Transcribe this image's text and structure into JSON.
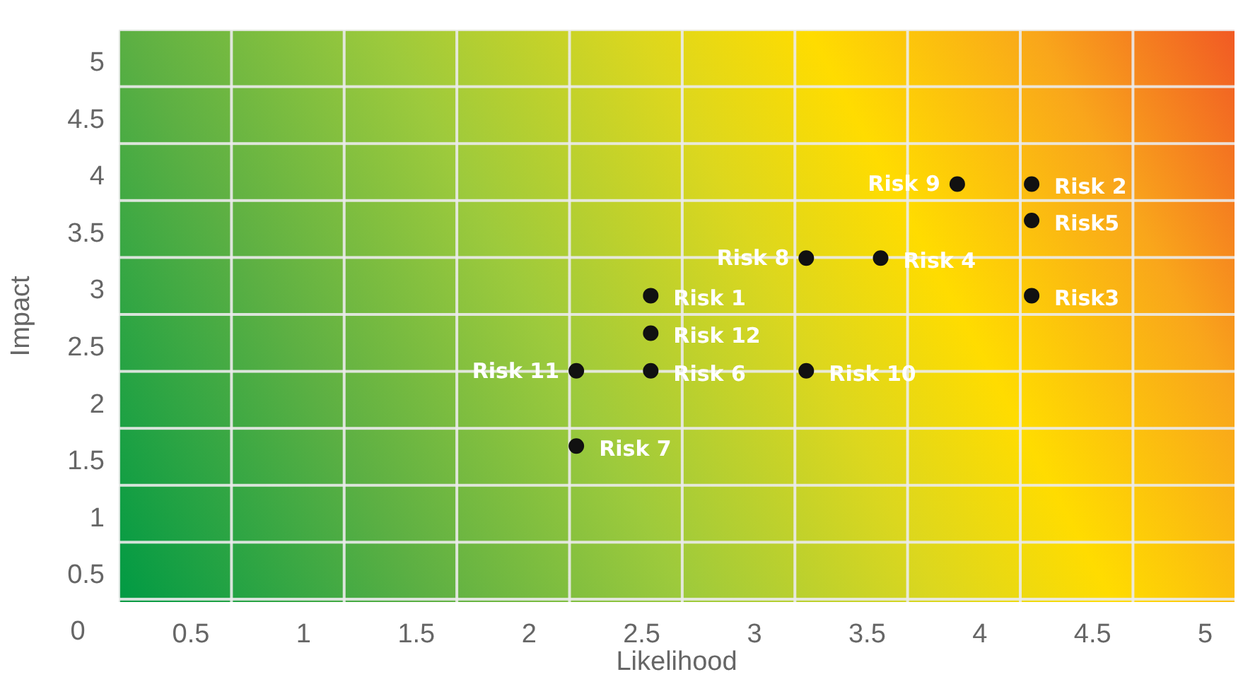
{
  "chart_data": {
    "type": "scatter",
    "xlabel": "Likelihood",
    "ylabel": "Impact",
    "xlim": [
      0.18,
      5.13
    ],
    "ylim": [
      0.27,
      5.29
    ],
    "xticks": [
      0.5,
      1,
      1.5,
      2,
      2.5,
      3,
      3.5,
      4,
      4.5,
      5
    ],
    "annotations": [
      "0"
    ],
    "yticks": [
      0.5,
      1,
      1.5,
      2,
      2.5,
      3,
      3.5,
      4,
      4.5,
      5
    ],
    "marker": "circle",
    "series": [
      {
        "name": "Risk 1",
        "color": "#111111",
        "x": [
          2.54
        ],
        "values": [
          2.96
        ]
      },
      {
        "name": "Risk 2",
        "color": "#111111",
        "x": [
          4.23
        ],
        "values": [
          3.94
        ]
      },
      {
        "name": "Risk3",
        "color": "#111111",
        "x": [
          4.23
        ],
        "values": [
          2.96
        ]
      },
      {
        "name": "Risk 4",
        "color": "#111111",
        "x": [
          3.56
        ],
        "values": [
          3.29
        ]
      },
      {
        "name": "Risk5",
        "color": "#111111",
        "x": [
          4.23
        ],
        "values": [
          3.62
        ]
      },
      {
        "name": "Risk 6",
        "color": "#111111",
        "x": [
          2.54
        ],
        "values": [
          2.3
        ]
      },
      {
        "name": "Risk 7",
        "color": "#111111",
        "x": [
          2.21
        ],
        "values": [
          1.64
        ]
      },
      {
        "name": "Risk 8",
        "color": "#111111",
        "x": [
          3.23
        ],
        "values": [
          3.29
        ]
      },
      {
        "name": "Risk 9",
        "color": "#111111",
        "x": [
          3.9
        ],
        "values": [
          3.94
        ]
      },
      {
        "name": "Risk 10",
        "color": "#111111",
        "x": [
          3.23
        ],
        "values": [
          2.3
        ]
      },
      {
        "name": "Risk 11",
        "color": "#111111",
        "x": [
          2.21
        ],
        "values": [
          2.3
        ]
      },
      {
        "name": "Risk 12",
        "color": "#111111",
        "x": [
          2.54
        ],
        "values": [
          2.63
        ]
      }
    ]
  }
}
